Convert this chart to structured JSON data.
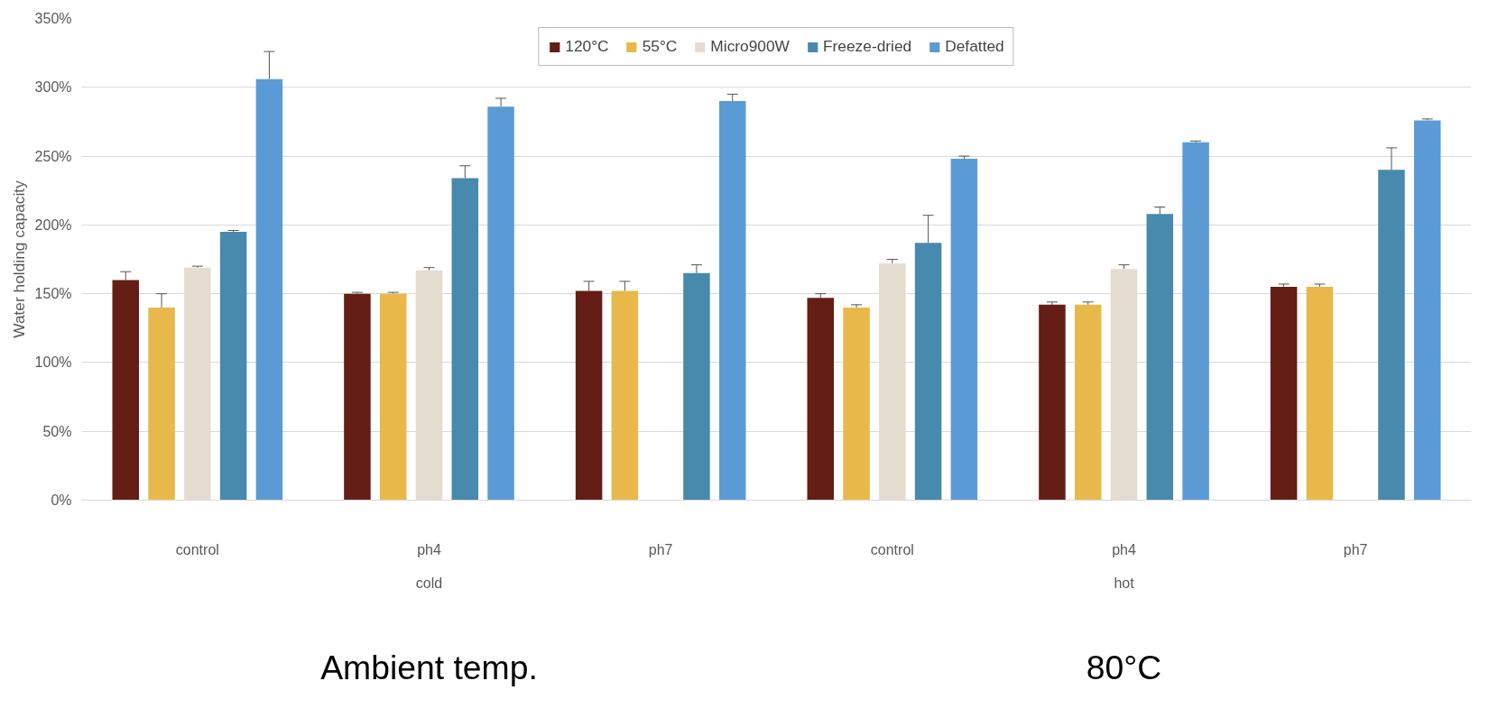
{
  "chart_data": {
    "type": "bar",
    "ylabel": "Water holding capacity",
    "categories": [
      "control",
      "ph4",
      "ph7",
      "control",
      "ph4",
      "ph7"
    ],
    "annotations": [
      "cold",
      "hot",
      "Ambient temp.",
      "80°C"
    ],
    "series": [
      {
        "name": "120°C",
        "color": "#641e16",
        "values": [
          160,
          150,
          152,
          147,
          142,
          155
        ],
        "errors": [
          [
            160,
            166
          ],
          [
            150,
            151
          ],
          [
            152,
            159
          ],
          [
            147,
            150
          ],
          [
            142,
            144
          ],
          [
            155,
            157
          ]
        ]
      },
      {
        "name": "55°C",
        "color": "#e8b94a",
        "values": [
          140,
          150,
          152,
          140,
          142,
          155
        ],
        "errors": [
          [
            140,
            150
          ],
          [
            150,
            151
          ],
          [
            152,
            159
          ],
          [
            140,
            142
          ],
          [
            142,
            144
          ],
          [
            155,
            157
          ]
        ]
      },
      {
        "name": "Micro900W",
        "color": "#e5dcd0",
        "values": [
          169,
          167,
          null,
          172,
          168,
          null
        ],
        "errors": [
          [
            169,
            170
          ],
          [
            167,
            169
          ],
          null,
          [
            172,
            175
          ],
          [
            168,
            171
          ],
          null
        ]
      },
      {
        "name": "Freeze-dried",
        "color": "#478aad",
        "values": [
          195,
          234,
          165,
          187,
          208,
          240
        ],
        "errors": [
          [
            195,
            196
          ],
          [
            234,
            243
          ],
          [
            165,
            171
          ],
          [
            187,
            207
          ],
          [
            208,
            213
          ],
          [
            240,
            256
          ]
        ]
      },
      {
        "name": "Defatted",
        "color": "#5b9bd5",
        "values": [
          306,
          286,
          290,
          248,
          260,
          276
        ],
        "errors": [
          [
            306,
            326
          ],
          [
            286,
            292
          ],
          [
            290,
            295
          ],
          [
            248,
            250
          ],
          [
            260,
            261
          ],
          [
            276,
            277
          ]
        ]
      }
    ],
    "ylim": [
      0,
      350
    ],
    "yticks": [
      {
        "value": 0,
        "label": "0%"
      },
      {
        "value": 50,
        "label": "50%"
      },
      {
        "value": 100,
        "label": "100%"
      },
      {
        "value": 150,
        "label": "150%"
      },
      {
        "value": 200,
        "label": "200%"
      },
      {
        "value": 250,
        "label": "250%"
      },
      {
        "value": 300,
        "label": "300%"
      },
      {
        "value": 350,
        "label": "350%"
      }
    ],
    "grid": "y",
    "legend": "top"
  }
}
